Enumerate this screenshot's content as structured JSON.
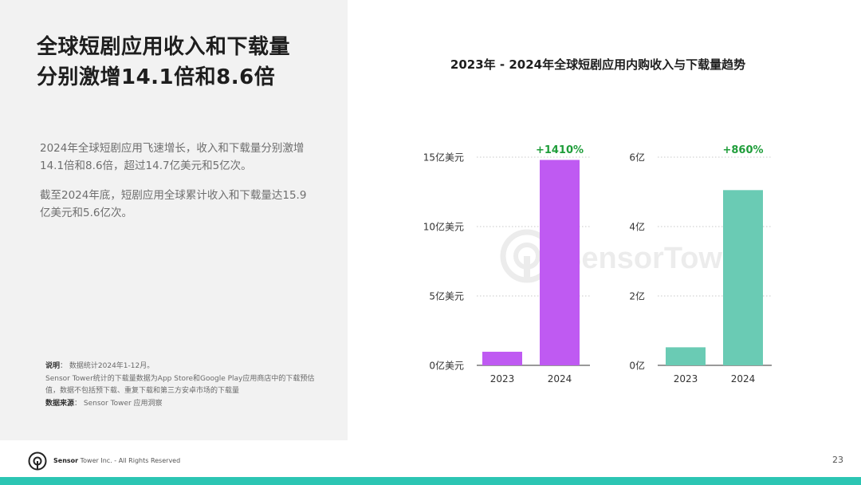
{
  "slide": {
    "title_line1": "全球短剧应用收入和下载量",
    "title_line2": "分别激增14.1倍和8.6倍",
    "paragraph1": "2024年全球短剧应用飞速增长，收入和下载量分别激增14.1倍和8.6倍，超过14.7亿美元和5亿次。",
    "paragraph2": "截至2024年底，短剧应用全球累计收入和下载量达15.9亿美元和5.6亿次。",
    "note_label": "说明",
    "note_sep": "：",
    "note_line1": "数据统计2024年1-12月。",
    "note_line2": "Sensor Tower统计的下载量数据为App Store和Google Play应用商店中的下载预估值，数据不包括预下载、重复下载和第三方安卓市场的下载量",
    "source_label": "数据来源",
    "source_text": "Sensor Tower 应用洞察",
    "chart_title": "2023年 - 2024年全球短剧应用内购收入与下载量趋势"
  },
  "footer": {
    "brand": "Sensor",
    "rest": " Tower Inc. - All Rights Reserved",
    "page_number": "23"
  },
  "watermark": {
    "text": "SensorTower"
  },
  "colors": {
    "revenue_bar": "#bf5af2",
    "downloads_bar": "#6acbb4",
    "growth_label": "#1f9d3a",
    "bottom_bar": "#2cc5b3"
  },
  "chart_data": [
    {
      "type": "bar",
      "categories": [
        "2023",
        "2024"
      ],
      "values": [
        0.98,
        14.8
      ],
      "ylim": [
        0,
        15
      ],
      "yticks": [
        0,
        5,
        10,
        15
      ],
      "yticklabels": [
        "0亿美元",
        "5亿美元",
        "10亿美元",
        "15亿美元"
      ],
      "grid": true,
      "annotation": "+1410%",
      "color": "#bf5af2"
    },
    {
      "type": "bar",
      "categories": [
        "2023",
        "2024"
      ],
      "values": [
        0.52,
        5.05
      ],
      "ylim": [
        0,
        6
      ],
      "yticks": [
        0,
        2,
        4,
        6
      ],
      "yticklabels": [
        "0亿",
        "2亿",
        "4亿",
        "6亿"
      ],
      "grid": true,
      "annotation": "+860%",
      "color": "#6acbb4"
    }
  ]
}
